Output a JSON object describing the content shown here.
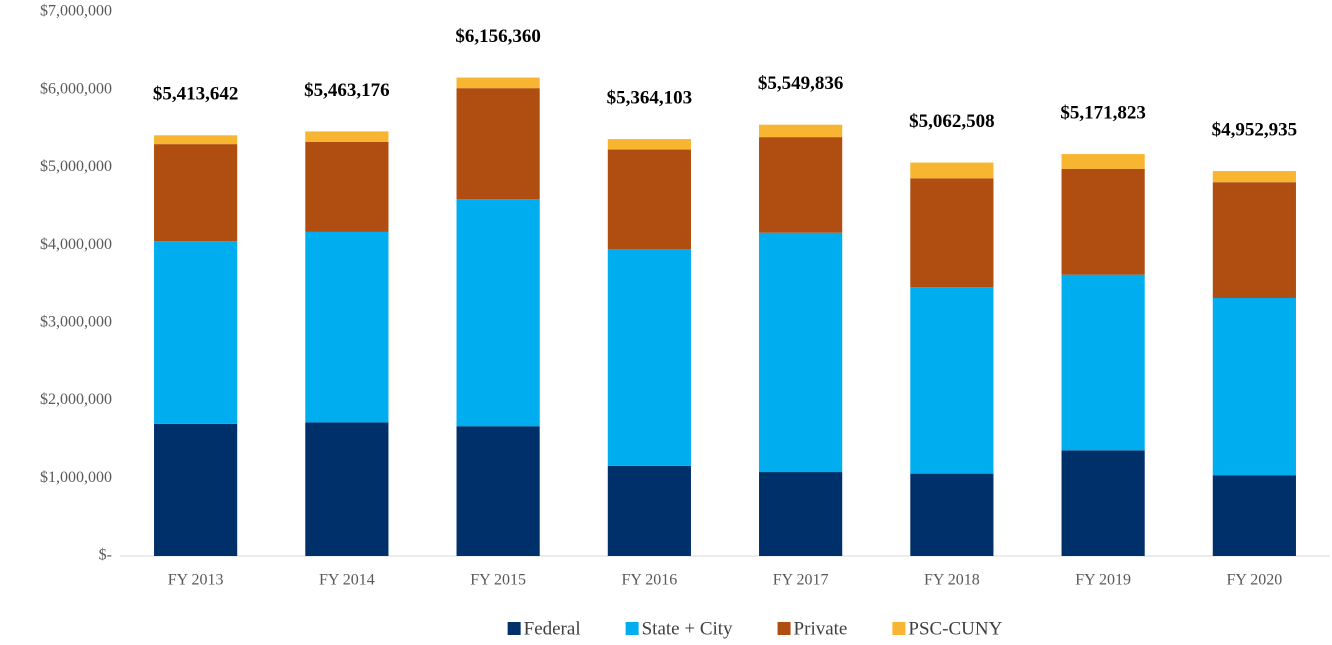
{
  "chart_data": {
    "type": "stacked_bar",
    "categories": [
      "FY 2013",
      "FY 2014",
      "FY 2015",
      "FY 2016",
      "FY 2017",
      "FY 2018",
      "FY 2019",
      "FY 2020"
    ],
    "series": [
      {
        "name": "Federal",
        "color": "#003069",
        "values": [
          1700000,
          1720000,
          1670000,
          1160000,
          1080000,
          1060000,
          1360000,
          1040000
        ]
      },
      {
        "name": "State + City",
        "color": "#00aeef",
        "values": [
          2350000,
          2450000,
          2920000,
          2790000,
          3080000,
          2400000,
          2260000,
          2280000
        ]
      },
      {
        "name": "Private",
        "color": "#b04e12",
        "values": [
          1250000,
          1160000,
          1430000,
          1280000,
          1230000,
          1400000,
          1360000,
          1490000
        ]
      },
      {
        "name": "PSC-CUNY",
        "color": "#f7b531",
        "values": [
          113642,
          133176,
          136360,
          134103,
          159836,
          202508,
          191823,
          142935
        ]
      }
    ],
    "totals": [
      5413642,
      5463176,
      6156360,
      5364103,
      5549836,
      5062508,
      5171823,
      4952935
    ],
    "total_labels": [
      "$5,413,642",
      "$5,463,176",
      "$6,156,360",
      "$5,364,103",
      "$5,549,836",
      "$5,062,508",
      "$5,171,823",
      "$4,952,935"
    ],
    "ylim": [
      0,
      7000000
    ],
    "yticks": [
      {
        "value": 0,
        "label": "$-"
      },
      {
        "value": 1000000,
        "label": "$1,000,000"
      },
      {
        "value": 2000000,
        "label": "$2,000,000"
      },
      {
        "value": 3000000,
        "label": "$3,000,000"
      },
      {
        "value": 4000000,
        "label": "$4,000,000"
      },
      {
        "value": 5000000,
        "label": "$5,000,000"
      },
      {
        "value": 6000000,
        "label": "$6,000,000"
      },
      {
        "value": 7000000,
        "label": "$7,000,000"
      }
    ],
    "legend": "bottom"
  }
}
